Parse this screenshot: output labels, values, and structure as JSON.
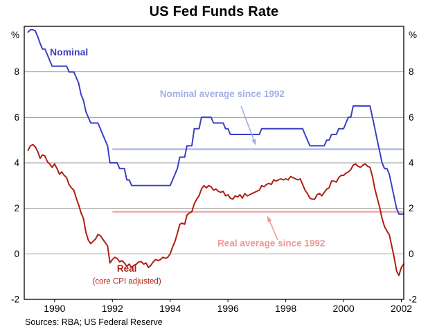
{
  "chart_data": {
    "type": "line",
    "title": "US Fed Funds Rate",
    "percent_label": "%",
    "source_note": "Sources: RBA; US Federal Reserve",
    "ylim": [
      -2,
      10
    ],
    "yticks": [
      8,
      6,
      4,
      2,
      0,
      -2
    ],
    "gridlines": [
      8,
      6,
      4,
      2,
      0
    ],
    "xlim": [
      1988.95,
      2002.083
    ],
    "xticks": [
      1990,
      1992,
      1994,
      1996,
      1998,
      2000,
      2002
    ],
    "x_start": 1989.083,
    "x_step": 0.083333,
    "colors": {
      "nominal": "#3a3fc4",
      "real": "#b01e14",
      "nominal_avg": "#aab4ea",
      "real_avg": "#f2a2a2",
      "grid": "#999999",
      "frame": "#000000"
    },
    "series": [
      {
        "id": "nominal",
        "name": "Nominal",
        "kind": "line",
        "values": [
          9.75,
          9.85,
          9.85,
          9.8,
          9.55,
          9.25,
          9.0,
          9.0,
          8.75,
          8.5,
          8.25,
          8.25,
          8.25,
          8.25,
          8.25,
          8.25,
          8.25,
          8.0,
          8.0,
          8.0,
          7.75,
          7.5,
          7.0,
          6.75,
          6.25,
          6.0,
          5.75,
          5.75,
          5.75,
          5.75,
          5.5,
          5.25,
          5.0,
          4.75,
          4.0,
          4.0,
          4.0,
          4.0,
          3.75,
          3.75,
          3.75,
          3.25,
          3.25,
          3.0,
          3.0,
          3.0,
          3.0,
          3.0,
          3.0,
          3.0,
          3.0,
          3.0,
          3.0,
          3.0,
          3.0,
          3.0,
          3.0,
          3.0,
          3.0,
          3.0,
          3.25,
          3.5,
          3.75,
          4.25,
          4.25,
          4.25,
          4.75,
          4.75,
          4.75,
          5.5,
          5.5,
          5.5,
          6.0,
          6.0,
          6.0,
          6.0,
          6.0,
          5.75,
          5.75,
          5.75,
          5.75,
          5.75,
          5.5,
          5.5,
          5.25,
          5.25,
          5.25,
          5.25,
          5.25,
          5.25,
          5.25,
          5.25,
          5.25,
          5.25,
          5.25,
          5.25,
          5.25,
          5.5,
          5.5,
          5.5,
          5.5,
          5.5,
          5.5,
          5.5,
          5.5,
          5.5,
          5.5,
          5.5,
          5.5,
          5.5,
          5.5,
          5.5,
          5.5,
          5.5,
          5.5,
          5.25,
          5.0,
          4.75,
          4.75,
          4.75,
          4.75,
          4.75,
          4.75,
          4.75,
          5.0,
          5.0,
          5.25,
          5.25,
          5.25,
          5.5,
          5.5,
          5.5,
          5.75,
          6.0,
          6.0,
          6.5,
          6.5,
          6.5,
          6.5,
          6.5,
          6.5,
          6.5,
          6.5,
          6.0,
          5.5,
          5.0,
          4.5,
          4.0,
          3.75,
          3.75,
          3.5,
          3.0,
          2.5,
          2.0,
          1.75,
          1.75,
          1.75
        ]
      },
      {
        "id": "real",
        "name": "Real (core CPI adjusted)",
        "kind": "line",
        "values": [
          4.55,
          4.75,
          4.8,
          4.7,
          4.5,
          4.2,
          4.35,
          4.3,
          4.05,
          3.95,
          3.8,
          3.95,
          3.75,
          3.5,
          3.6,
          3.45,
          3.35,
          3.05,
          2.9,
          2.8,
          2.45,
          2.15,
          1.8,
          1.55,
          0.95,
          0.6,
          0.45,
          0.55,
          0.65,
          0.85,
          0.8,
          0.65,
          0.5,
          0.35,
          -0.4,
          -0.25,
          -0.15,
          -0.2,
          -0.35,
          -0.3,
          -0.4,
          -0.55,
          -0.45,
          -0.6,
          -0.5,
          -0.45,
          -0.35,
          -0.35,
          -0.45,
          -0.4,
          -0.6,
          -0.5,
          -0.35,
          -0.25,
          -0.3,
          -0.25,
          -0.15,
          -0.2,
          -0.15,
          0.0,
          0.3,
          0.55,
          0.9,
          1.3,
          1.35,
          1.3,
          1.7,
          1.8,
          1.85,
          2.2,
          2.4,
          2.55,
          2.85,
          3.0,
          2.9,
          3.0,
          2.95,
          2.8,
          2.85,
          2.75,
          2.7,
          2.75,
          2.55,
          2.6,
          2.45,
          2.4,
          2.55,
          2.5,
          2.6,
          2.45,
          2.65,
          2.55,
          2.6,
          2.65,
          2.7,
          2.75,
          2.8,
          3.0,
          2.95,
          3.05,
          3.1,
          3.05,
          3.25,
          3.2,
          3.25,
          3.3,
          3.25,
          3.3,
          3.25,
          3.4,
          3.35,
          3.3,
          3.25,
          3.3,
          3.05,
          2.8,
          2.65,
          2.45,
          2.4,
          2.4,
          2.6,
          2.65,
          2.55,
          2.7,
          2.85,
          2.9,
          3.2,
          3.2,
          3.15,
          3.35,
          3.45,
          3.45,
          3.55,
          3.6,
          3.7,
          3.9,
          3.95,
          3.85,
          3.8,
          3.9,
          3.95,
          3.85,
          3.8,
          3.4,
          2.85,
          2.45,
          2.05,
          1.55,
          1.2,
          1.0,
          0.85,
          0.35,
          -0.15,
          -0.75,
          -0.95,
          -0.6,
          -0.45
        ]
      },
      {
        "id": "nominal_avg",
        "name": "Nominal average since 1992",
        "kind": "hline",
        "y": 4.6,
        "x_from": 1992.0,
        "x_to": 2002.083
      },
      {
        "id": "real_avg",
        "name": "Real average since 1992",
        "kind": "hline",
        "y": 1.85,
        "x_from": 1992.0,
        "x_to": 2002.083
      }
    ],
    "annotations": [
      {
        "id": "nominal-label",
        "text": "Nominal",
        "x": 1990.5,
        "y": 8.72,
        "color": "#3a3fc4",
        "size": 14,
        "bold": true,
        "anchor": "middle"
      },
      {
        "id": "nominal-avg-label",
        "text": "Nominal average since 1992",
        "x": 1995.8,
        "y": 6.9,
        "color": "#a2aee8",
        "size": 13.5,
        "bold": true,
        "anchor": "middle"
      },
      {
        "id": "real-avg-label",
        "text": "Real average since 1992",
        "x": 1997.5,
        "y": 0.33,
        "color": "#f09898",
        "size": 13.5,
        "bold": true,
        "anchor": "middle"
      },
      {
        "id": "real-label",
        "text": "Real",
        "x": 1992.5,
        "y": -0.78,
        "color": "#b01e14",
        "size": 13.5,
        "bold": true,
        "anchor": "middle"
      },
      {
        "id": "real-sublabel",
        "text": "(core CPI adjusted)",
        "x": 1992.5,
        "y": -1.32,
        "color": "#b01e14",
        "size": 11.5,
        "bold": false,
        "anchor": "middle"
      }
    ],
    "arrows": [
      {
        "id": "nominal-avg-arrow",
        "color": "#a2aee8",
        "from_x": 1996.45,
        "from_y": 6.5,
        "to_x": 1996.95,
        "to_y": 4.82
      },
      {
        "id": "real-avg-arrow",
        "color": "#f09898",
        "from_x": 1997.72,
        "from_y": 0.62,
        "to_x": 1997.38,
        "to_y": 1.62
      }
    ]
  }
}
